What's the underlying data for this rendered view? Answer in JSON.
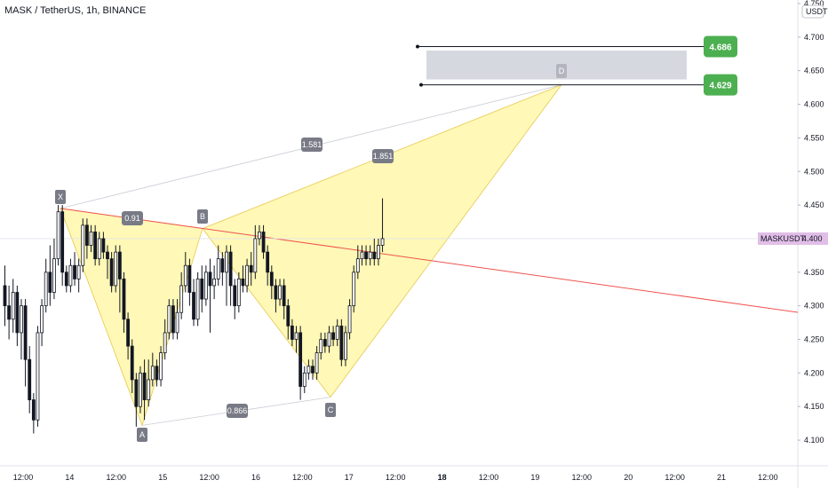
{
  "header": {
    "title": "MASK / TetherUS, 1h, BINANCE"
  },
  "axis": {
    "unit": "USDT"
  },
  "symbol_tag": {
    "name": "MASKUSDT",
    "price": "4.400",
    "color": "#e1bee7"
  },
  "targets": [
    {
      "label": "4.686",
      "color": "#4caf50"
    },
    {
      "label": "4.629",
      "color": "#4caf50"
    }
  ],
  "pattern": {
    "points": [
      "X",
      "A",
      "B",
      "C",
      "D"
    ],
    "ratios": {
      "xb": "0.91",
      "ac": "0.866",
      "xd": "1.581",
      "bd": "1.851"
    },
    "fill": "#fff59d",
    "zone_color": "#d1d4dc"
  },
  "chart_data": {
    "type": "candlestick",
    "title": "MASK / TetherUS, 1h, BINANCE",
    "ylim": [
      4.08,
      4.75
    ],
    "yticks": [
      "4.750",
      "4.700",
      "4.650",
      "4.600",
      "4.550",
      "4.500",
      "4.450",
      "4.400",
      "4.350",
      "4.300",
      "4.250",
      "4.200",
      "4.150",
      "4.100"
    ],
    "xticks": [
      "12:00",
      "14",
      "12:00",
      "15",
      "12:00",
      "16",
      "12:00",
      "17",
      "12:00",
      "18",
      "12:00",
      "19",
      "12:00",
      "20",
      "12:00",
      "21",
      "12:00"
    ],
    "xticks_bold": [
      "18"
    ],
    "pattern_points": [
      {
        "name": "X",
        "price": 4.445
      },
      {
        "name": "A",
        "price": 4.122
      },
      {
        "name": "B",
        "price": 4.415
      },
      {
        "name": "C",
        "price": 4.164
      },
      {
        "name": "D",
        "price": 4.629
      }
    ],
    "levels": [
      4.686,
      4.629
    ],
    "last_price": 4.4,
    "candles_approx": [
      [
        4.33,
        4.3,
        4.36,
        4.27
      ],
      [
        4.3,
        4.28,
        4.33,
        4.25
      ],
      [
        4.28,
        4.32,
        4.34,
        4.26
      ],
      [
        4.32,
        4.26,
        4.33,
        4.24
      ],
      [
        4.26,
        4.3,
        4.31,
        4.22
      ],
      [
        4.3,
        4.22,
        4.31,
        4.18
      ],
      [
        4.22,
        4.16,
        4.24,
        4.14
      ],
      [
        4.16,
        4.13,
        4.17,
        4.11
      ],
      [
        4.13,
        4.26,
        4.27,
        4.12
      ],
      [
        4.26,
        4.3,
        4.31,
        4.24
      ],
      [
        4.3,
        4.35,
        4.37,
        4.29
      ],
      [
        4.35,
        4.32,
        4.39,
        4.3
      ],
      [
        4.32,
        4.37,
        4.4,
        4.31
      ],
      [
        4.37,
        4.44,
        4.45,
        4.36
      ],
      [
        4.44,
        4.35,
        4.45,
        4.33
      ],
      [
        4.35,
        4.33,
        4.36,
        4.32
      ],
      [
        4.33,
        4.36,
        4.37,
        4.32
      ],
      [
        4.36,
        4.34,
        4.38,
        4.33
      ],
      [
        4.34,
        4.36,
        4.37,
        4.32
      ],
      [
        4.36,
        4.42,
        4.43,
        4.35
      ],
      [
        4.42,
        4.39,
        4.43,
        4.37
      ],
      [
        4.39,
        4.41,
        4.42,
        4.38
      ],
      [
        4.41,
        4.37,
        4.42,
        4.36
      ],
      [
        4.37,
        4.4,
        4.41,
        4.36
      ],
      [
        4.4,
        4.38,
        4.41,
        4.37
      ],
      [
        4.38,
        4.37,
        4.39,
        4.34
      ],
      [
        4.37,
        4.33,
        4.38,
        4.32
      ],
      [
        4.33,
        4.38,
        4.39,
        4.32
      ],
      [
        4.38,
        4.34,
        4.39,
        4.29
      ],
      [
        4.34,
        4.28,
        4.35,
        4.26
      ],
      [
        4.28,
        4.24,
        4.29,
        4.22
      ],
      [
        4.24,
        4.19,
        4.25,
        4.17
      ],
      [
        4.19,
        4.15,
        4.2,
        4.12
      ],
      [
        4.15,
        4.2,
        4.21,
        4.14
      ],
      [
        4.2,
        4.16,
        4.22,
        4.13
      ],
      [
        4.16,
        4.19,
        4.22,
        4.15
      ],
      [
        4.19,
        4.21,
        4.23,
        4.18
      ],
      [
        4.21,
        4.19,
        4.22,
        4.18
      ],
      [
        4.19,
        4.23,
        4.24,
        4.18
      ],
      [
        4.23,
        4.26,
        4.28,
        4.22
      ],
      [
        4.26,
        4.3,
        4.31,
        4.25
      ],
      [
        4.3,
        4.26,
        4.31,
        4.25
      ],
      [
        4.26,
        4.29,
        4.31,
        4.25
      ],
      [
        4.29,
        4.33,
        4.35,
        4.28
      ],
      [
        4.33,
        4.36,
        4.38,
        4.32
      ],
      [
        4.36,
        4.32,
        4.37,
        4.3
      ],
      [
        4.32,
        4.28,
        4.34,
        4.27
      ],
      [
        4.28,
        4.34,
        4.35,
        4.27
      ],
      [
        4.34,
        4.31,
        4.36,
        4.29
      ],
      [
        4.31,
        4.35,
        4.36,
        4.3
      ],
      [
        4.35,
        4.33,
        4.37,
        4.26
      ],
      [
        4.33,
        4.34,
        4.36,
        4.31
      ],
      [
        4.34,
        4.37,
        4.39,
        4.33
      ],
      [
        4.37,
        4.35,
        4.38,
        4.33
      ],
      [
        4.35,
        4.38,
        4.39,
        4.3
      ],
      [
        4.38,
        4.33,
        4.39,
        4.3
      ],
      [
        4.33,
        4.3,
        4.34,
        4.28
      ],
      [
        4.3,
        4.34,
        4.35,
        4.29
      ],
      [
        4.34,
        4.33,
        4.36,
        4.32
      ],
      [
        4.33,
        4.36,
        4.37,
        4.32
      ],
      [
        4.36,
        4.35,
        4.38,
        4.33
      ],
      [
        4.35,
        4.4,
        4.42,
        4.34
      ],
      [
        4.4,
        4.41,
        4.42,
        4.39
      ],
      [
        4.41,
        4.38,
        4.42,
        4.37
      ],
      [
        4.38,
        4.35,
        4.39,
        4.33
      ],
      [
        4.35,
        4.33,
        4.36,
        4.31
      ],
      [
        4.33,
        4.31,
        4.34,
        4.29
      ],
      [
        4.31,
        4.33,
        4.34,
        4.3
      ],
      [
        4.33,
        4.3,
        4.34,
        4.28
      ],
      [
        4.3,
        4.27,
        4.31,
        4.25
      ],
      [
        4.27,
        4.25,
        4.28,
        4.24
      ],
      [
        4.25,
        4.26,
        4.27,
        4.23
      ],
      [
        4.26,
        4.18,
        4.27,
        4.16
      ],
      [
        4.18,
        4.2,
        4.21,
        4.17
      ],
      [
        4.2,
        4.21,
        4.22,
        4.19
      ],
      [
        4.21,
        4.2,
        4.22,
        4.19
      ],
      [
        4.2,
        4.23,
        4.24,
        4.19
      ],
      [
        4.23,
        4.25,
        4.26,
        4.22
      ],
      [
        4.25,
        4.24,
        4.26,
        4.23
      ],
      [
        4.24,
        4.26,
        4.27,
        4.23
      ],
      [
        4.26,
        4.25,
        4.27,
        4.24
      ],
      [
        4.25,
        4.27,
        4.28,
        4.24
      ],
      [
        4.27,
        4.22,
        4.28,
        4.21
      ],
      [
        4.22,
        4.26,
        4.27,
        4.21
      ],
      [
        4.26,
        4.3,
        4.31,
        4.25
      ],
      [
        4.3,
        4.35,
        4.36,
        4.29
      ],
      [
        4.35,
        4.37,
        4.39,
        4.34
      ],
      [
        4.37,
        4.38,
        4.39,
        4.36
      ],
      [
        4.38,
        4.37,
        4.39,
        4.36
      ],
      [
        4.37,
        4.38,
        4.39,
        4.36
      ],
      [
        4.38,
        4.37,
        4.4,
        4.36
      ],
      [
        4.37,
        4.39,
        4.4,
        4.36
      ],
      [
        4.39,
        4.4,
        4.46,
        4.38
      ]
    ]
  }
}
